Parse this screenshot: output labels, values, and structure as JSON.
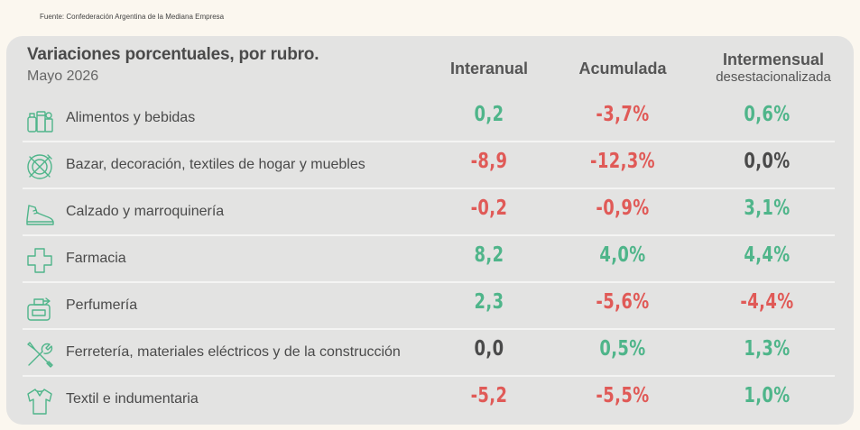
{
  "source": "Fuente: Confederación Argentina de la Mediana Empresa",
  "title": "Variaciones porcentuales, por rubro.",
  "subtitle": "Mayo 2026",
  "columns": {
    "interanual": "Interanual",
    "acumulada": "Acumulada",
    "intermensual": "Intermensual",
    "intermensual_sub": "desestacionalizada"
  },
  "colors": {
    "green": "#4fb58a",
    "red": "#e05a57",
    "dark": "#4a4a4a"
  },
  "rows": [
    {
      "icon": "groceries-icon",
      "label": "Alimentos y bebidas",
      "interanual": "0,2",
      "acumulada": "-3,7%",
      "intermensual": "0,6%"
    },
    {
      "icon": "plate-fork-knife-icon",
      "label": "Bazar, decoración, textiles de hogar y muebles",
      "interanual": "-8,9",
      "acumulada": "-12,3%",
      "intermensual": "0,0%"
    },
    {
      "icon": "shoe-icon",
      "label": "Calzado y marroquinería",
      "interanual": "-0,2",
      "acumulada": "-0,9%",
      "intermensual": "3,1%"
    },
    {
      "icon": "medical-cross-icon",
      "label": "Farmacia",
      "interanual": "8,2",
      "acumulada": "4,0%",
      "intermensual": "4,4%"
    },
    {
      "icon": "perfume-bottle-icon",
      "label": "Perfumería",
      "interanual": "2,3",
      "acumulada": "-5,6%",
      "intermensual": "-4,4%"
    },
    {
      "icon": "wrench-screwdriver-icon",
      "label": "Ferretería, materiales eléctricos y de la construcción",
      "interanual": "0,0",
      "acumulada": "0,5%",
      "intermensual": "1,3%"
    },
    {
      "icon": "shirt-icon",
      "label": "Textil e indumentaria",
      "interanual": "-5,2",
      "acumulada": "-5,5%",
      "intermensual": "1,0%"
    }
  ]
}
